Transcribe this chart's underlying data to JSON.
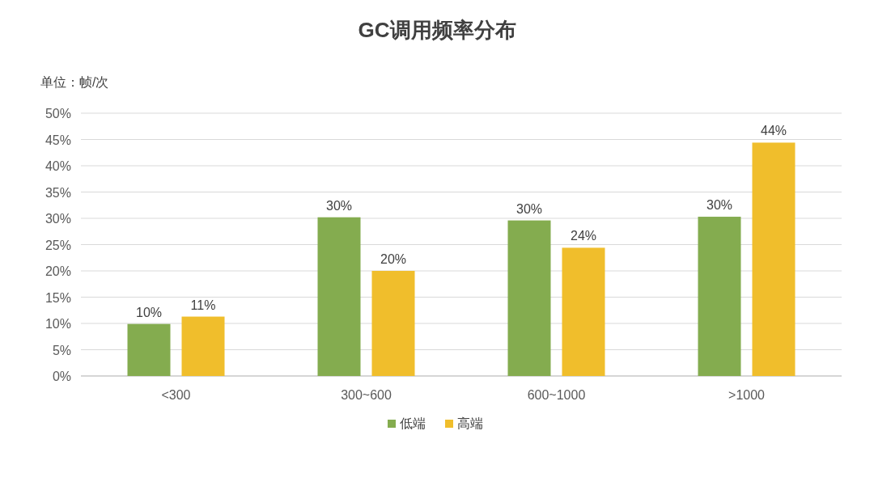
{
  "chart_data": {
    "type": "bar",
    "title": "GC调用频率分布",
    "annotations": [
      "单位：帧/次"
    ],
    "categories": [
      "<300",
      "300~600",
      "600~1000",
      ">1000"
    ],
    "series": [
      {
        "name": "低端",
        "color": "#84ac4f",
        "values": [
          9.9,
          30.2,
          29.6,
          30.3
        ],
        "value_labels": [
          "10%",
          "30%",
          "30%",
          "30%"
        ]
      },
      {
        "name": "高端",
        "color": "#f0be2c",
        "values": [
          11.3,
          20.0,
          24.4,
          44.4
        ],
        "value_labels": [
          "11%",
          "20%",
          "24%",
          "44%"
        ]
      }
    ],
    "ylim": [
      0,
      50
    ],
    "yticks": [
      {
        "value": 0,
        "label": "0%"
      },
      {
        "value": 5,
        "label": "5%"
      },
      {
        "value": 10,
        "label": "10%"
      },
      {
        "value": 15,
        "label": "15%"
      },
      {
        "value": 20,
        "label": "20%"
      },
      {
        "value": 25,
        "label": "25%"
      },
      {
        "value": 30,
        "label": "30%"
      },
      {
        "value": 35,
        "label": "35%"
      },
      {
        "value": 40,
        "label": "40%"
      },
      {
        "value": 45,
        "label": "45%"
      },
      {
        "value": 50,
        "label": "50%"
      }
    ],
    "grid": "y",
    "legend": "bottom"
  }
}
